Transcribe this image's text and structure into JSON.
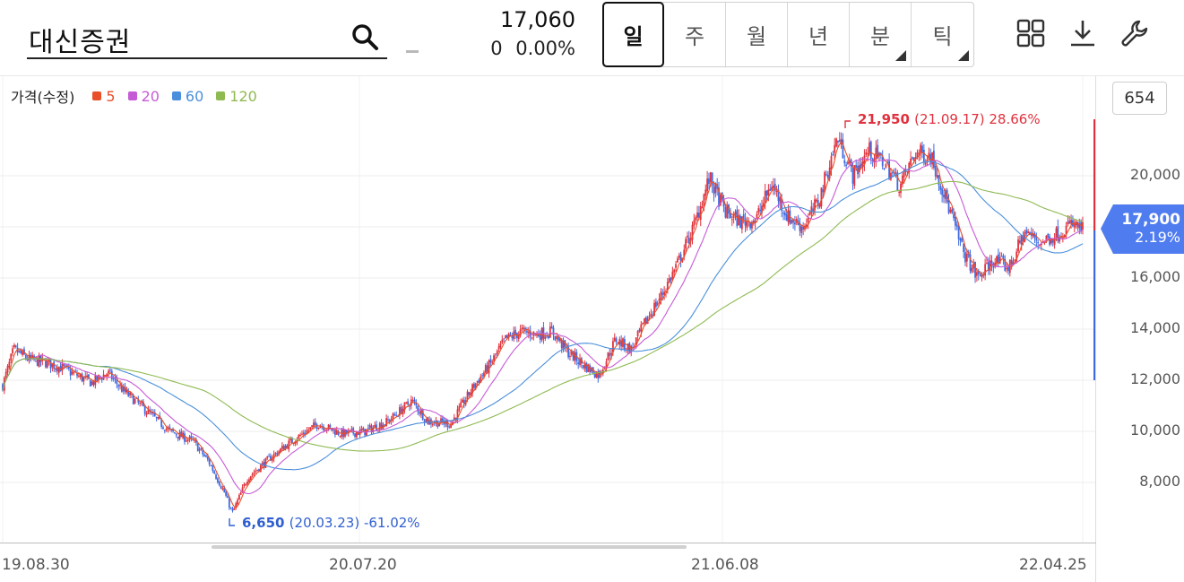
{
  "stock": {
    "name": "대신증권",
    "price": "17,060",
    "change": "0",
    "change_pct": "0.00%"
  },
  "period_tabs": [
    {
      "label": "일",
      "active": true,
      "has_submenu": false
    },
    {
      "label": "주",
      "active": false,
      "has_submenu": false
    },
    {
      "label": "월",
      "active": false,
      "has_submenu": false
    },
    {
      "label": "년",
      "active": false,
      "has_submenu": false
    },
    {
      "label": "분",
      "active": false,
      "has_submenu": true
    },
    {
      "label": "틱",
      "active": false,
      "has_submenu": true
    }
  ],
  "tools": {
    "icons": [
      "grid-layout-icon",
      "download-icon",
      "wrench-icon"
    ]
  },
  "legend": {
    "title": "가격(수정)",
    "items": [
      {
        "label": "5",
        "color": "#e8502a"
      },
      {
        "label": "20",
        "color": "#c65bd6"
      },
      {
        "label": "60",
        "color": "#4a8fdb"
      },
      {
        "label": "120",
        "color": "#8fba52"
      }
    ]
  },
  "candle_count": "654",
  "colors": {
    "up": "#e0323e",
    "down": "#3f6ae0",
    "ma5": "#e8502a",
    "ma20": "#c65bd6",
    "ma60": "#4a8fdb",
    "ma120": "#8fba52",
    "tag": "#4f7cef"
  },
  "chart_data": {
    "type": "candlestick",
    "x_range": [
      "19.08.30",
      "22.04.25"
    ],
    "x_ticks": [
      "19.08.30",
      "20.07.20",
      "21.06.08",
      "22.04.25"
    ],
    "y_ticks": [
      "8,000",
      "10,000",
      "12,000",
      "14,000",
      "16,000",
      "20,000"
    ],
    "ylim": [
      6000,
      23000
    ],
    "last": {
      "value": "17,900",
      "pct": "2.19%"
    },
    "high_annotation": {
      "value": "21,950",
      "date": "(21.09.17)",
      "pct": "28.66%"
    },
    "low_annotation": {
      "value": "6,650",
      "date": "(20.03.23)",
      "pct": "-61.02%"
    },
    "close_path": [
      {
        "d": "19.08.30",
        "v": 11800
      },
      {
        "d": "19.09.09",
        "v": 13200
      },
      {
        "d": "19.09.23",
        "v": 12800
      },
      {
        "d": "19.10.07",
        "v": 12700
      },
      {
        "d": "19.10.21",
        "v": 12500
      },
      {
        "d": "19.11.04",
        "v": 12200
      },
      {
        "d": "19.11.18",
        "v": 11900
      },
      {
        "d": "19.12.02",
        "v": 12300
      },
      {
        "d": "19.12.16",
        "v": 11600
      },
      {
        "d": "20.01.06",
        "v": 10800
      },
      {
        "d": "20.01.27",
        "v": 10000
      },
      {
        "d": "20.02.17",
        "v": 9600
      },
      {
        "d": "20.03.02",
        "v": 8800
      },
      {
        "d": "20.03.16",
        "v": 7600
      },
      {
        "d": "20.03.23",
        "v": 6800
      },
      {
        "d": "20.04.06",
        "v": 8200
      },
      {
        "d": "20.04.27",
        "v": 9000
      },
      {
        "d": "20.05.18",
        "v": 9700
      },
      {
        "d": "20.06.08",
        "v": 10300
      },
      {
        "d": "20.06.29",
        "v": 9900
      },
      {
        "d": "20.07.20",
        "v": 10000
      },
      {
        "d": "20.08.10",
        "v": 10400
      },
      {
        "d": "20.08.31",
        "v": 11200
      },
      {
        "d": "20.09.14",
        "v": 10400
      },
      {
        "d": "20.10.05",
        "v": 10300
      },
      {
        "d": "20.10.26",
        "v": 11800
      },
      {
        "d": "20.11.09",
        "v": 12600
      },
      {
        "d": "20.11.23",
        "v": 13600
      },
      {
        "d": "20.12.07",
        "v": 13900
      },
      {
        "d": "20.12.21",
        "v": 13800
      },
      {
        "d": "21.01.04",
        "v": 13900
      },
      {
        "d": "21.01.18",
        "v": 13100
      },
      {
        "d": "21.02.01",
        "v": 12600
      },
      {
        "d": "21.02.15",
        "v": 12200
      },
      {
        "d": "21.03.02",
        "v": 13600
      },
      {
        "d": "21.03.16",
        "v": 13200
      },
      {
        "d": "21.03.30",
        "v": 14400
      },
      {
        "d": "21.04.13",
        "v": 15400
      },
      {
        "d": "21.04.27",
        "v": 16600
      },
      {
        "d": "21.05.11",
        "v": 18000
      },
      {
        "d": "21.05.25",
        "v": 19900
      },
      {
        "d": "21.06.08",
        "v": 18600
      },
      {
        "d": "21.06.22",
        "v": 18200
      },
      {
        "d": "21.07.06",
        "v": 18300
      },
      {
        "d": "21.07.20",
        "v": 19700
      },
      {
        "d": "21.08.03",
        "v": 18400
      },
      {
        "d": "21.08.17",
        "v": 18000
      },
      {
        "d": "21.08.31",
        "v": 19000
      },
      {
        "d": "21.09.17",
        "v": 21500
      },
      {
        "d": "21.10.01",
        "v": 20000
      },
      {
        "d": "21.10.15",
        "v": 21000
      },
      {
        "d": "21.10.29",
        "v": 20500
      },
      {
        "d": "21.11.12",
        "v": 19600
      },
      {
        "d": "21.11.26",
        "v": 20900
      },
      {
        "d": "21.12.10",
        "v": 20800
      },
      {
        "d": "21.12.24",
        "v": 19000
      },
      {
        "d": "22.01.07",
        "v": 17100
      },
      {
        "d": "22.01.21",
        "v": 16000
      },
      {
        "d": "22.02.04",
        "v": 16700
      },
      {
        "d": "22.02.18",
        "v": 16400
      },
      {
        "d": "22.03.04",
        "v": 17800
      },
      {
        "d": "22.03.18",
        "v": 17400
      },
      {
        "d": "22.04.01",
        "v": 17700
      },
      {
        "d": "22.04.15",
        "v": 18100
      },
      {
        "d": "22.04.25",
        "v": 17900
      }
    ],
    "series": [
      {
        "name": "5"
      },
      {
        "name": "20"
      },
      {
        "name": "60"
      },
      {
        "name": "120"
      }
    ]
  }
}
